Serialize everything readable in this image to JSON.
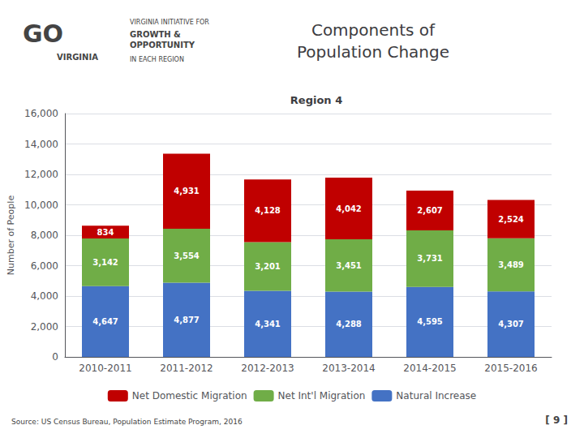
{
  "chart_data": {
    "type": "bar",
    "title": "Components of\nPopulation Change",
    "subtitle": "Region 4",
    "ylabel": "Number of People",
    "categories": [
      "2010-2011",
      "2011-2012",
      "2012-2013",
      "2013-2014",
      "2014-2015",
      "2015-2016"
    ],
    "stacked": true,
    "data_labels": true,
    "grid": true,
    "legend": "bottom",
    "series": [
      {
        "name": "Natural Increase",
        "color": "#4472C4",
        "values": [
          4647,
          4877,
          4341,
          4288,
          4595,
          4307
        ],
        "value_labels": [
          "4,647",
          "4,877",
          "4,341",
          "4,288",
          "4,595",
          "4,307"
        ]
      },
      {
        "name": "Net Int'l Migration",
        "color": "#70AD47",
        "values": [
          3142,
          3554,
          3201,
          3451,
          3731,
          3489
        ],
        "value_labels": [
          "3,142",
          "3,554",
          "3,201",
          "3,451",
          "3,731",
          "3,489"
        ]
      },
      {
        "name": "Net Domestic Migration",
        "color": "#C00000",
        "values": [
          834,
          4931,
          4128,
          4042,
          2607,
          2524
        ],
        "value_labels": [
          "834",
          "4,931",
          "4,128",
          "4,042",
          "2,607",
          "2,524"
        ]
      }
    ],
    "ylim": [
      0,
      16000
    ],
    "yticks": [
      0,
      {
        "value": 2000,
        "label": "2,000"
      },
      {
        "value": 4000,
        "label": "4,000"
      },
      {
        "value": 6000,
        "label": "6,000"
      },
      {
        "value": 8000,
        "label": "8,000"
      },
      {
        "value": 10000,
        "label": "10,000"
      },
      {
        "value": 12000,
        "label": "12,000"
      },
      {
        "value": 14000,
        "label": "14,000"
      },
      {
        "value": 16000,
        "label": "16,000"
      }
    ],
    "annotations": [
      "GO",
      "VIRGINIA",
      "VIRGINIA INITIATIVE FOR",
      "GROWTH &\nOPPORTUNITY",
      "IN EACH REGION",
      "[ 9 ]",
      "Source: US Census Bureau, Population Estimate Program, 2016"
    ]
  }
}
